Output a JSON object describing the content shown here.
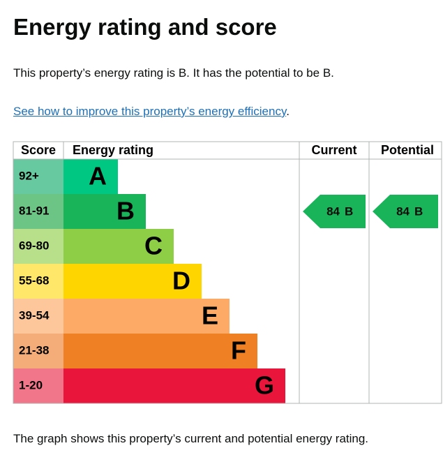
{
  "header": {
    "title": "Energy rating and score"
  },
  "intro": "This property’s energy rating is B. It has the potential to be B.",
  "link": {
    "text": "See how to improve this property’s energy efficiency",
    "suffix": "."
  },
  "table": {
    "columns": [
      "Score",
      "Energy rating",
      "Current",
      "Potential"
    ],
    "bands": [
      {
        "score": "92+",
        "letter": "A",
        "color": "#00c781",
        "score_color": "#67c99f"
      },
      {
        "score": "81-91",
        "letter": "B",
        "color": "#19b459",
        "score_color": "#6cc485"
      },
      {
        "score": "69-80",
        "letter": "C",
        "color": "#8dce46",
        "score_color": "#b8df8a"
      },
      {
        "score": "55-68",
        "letter": "D",
        "color": "#ffd500",
        "score_color": "#ffe76a"
      },
      {
        "score": "39-54",
        "letter": "E",
        "color": "#fcaa65",
        "score_color": "#fdc79b"
      },
      {
        "score": "21-38",
        "letter": "F",
        "color": "#ef8023",
        "score_color": "#f4ad78"
      },
      {
        "score": "1-20",
        "letter": "G",
        "color": "#e9153b",
        "score_color": "#f27689"
      }
    ],
    "current": {
      "score": 84,
      "letter": "B"
    },
    "potential": {
      "score": 84,
      "letter": "B"
    }
  },
  "footer": "The graph shows this property’s current and potential energy rating."
}
